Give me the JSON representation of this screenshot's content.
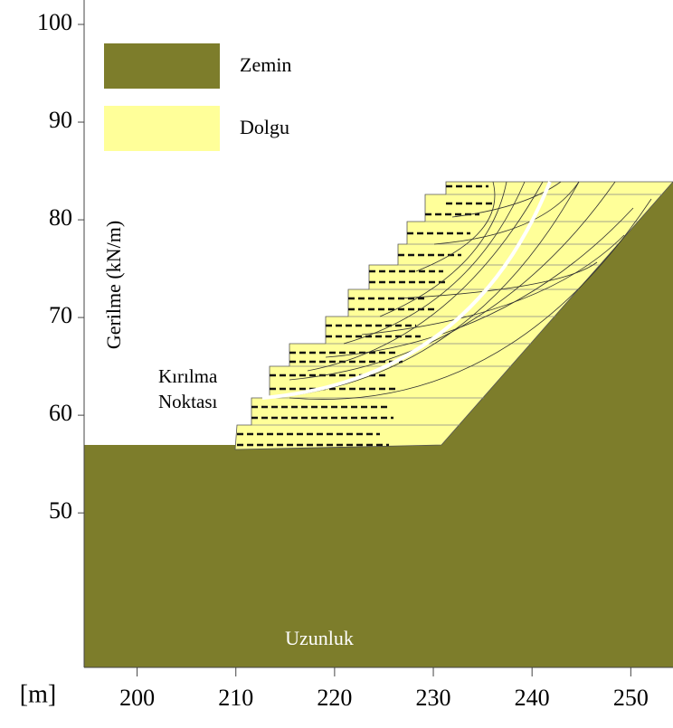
{
  "chart_data": {
    "type": "section",
    "xlim": [
      195,
      254
    ],
    "ylim": [
      34,
      102
    ],
    "xticks": [
      200,
      210,
      220,
      230,
      240,
      250
    ],
    "yticks": [
      50,
      60,
      70,
      80,
      90,
      100
    ],
    "y_label": "Gerilme (kN/m)",
    "x_label": "Uzunluk",
    "x_unit": "[m]",
    "annotation": [
      "Kırılma",
      "Noktası"
    ],
    "legend": [
      {
        "name": "Zemin",
        "color": "#7d7d2b"
      },
      {
        "name": "Dolgu",
        "color": "#ffff99"
      }
    ]
  }
}
